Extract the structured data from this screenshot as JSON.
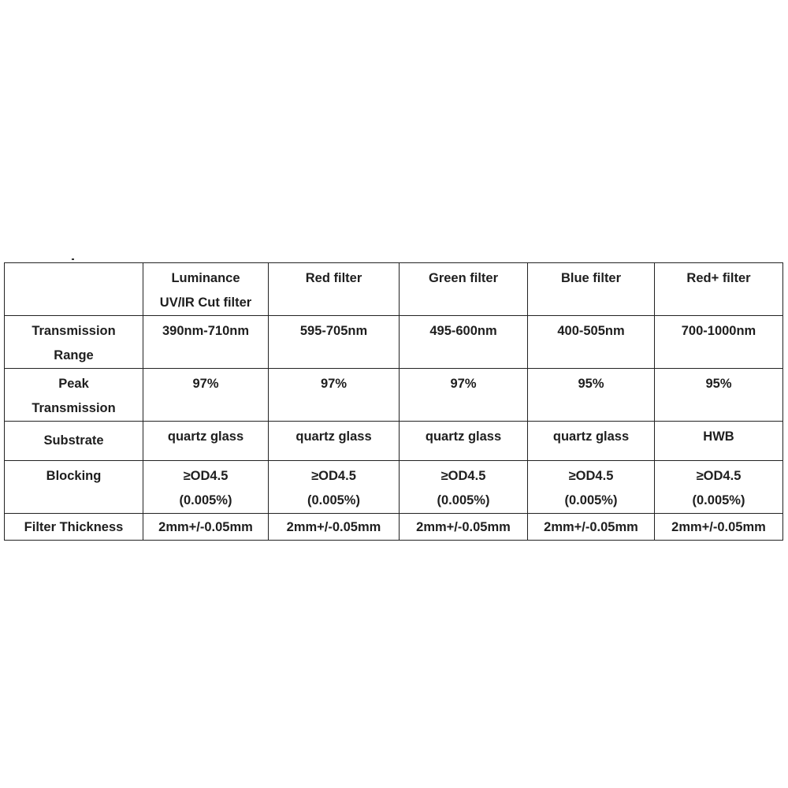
{
  "columns": [
    "",
    "Luminance UV/IR Cut filter",
    "Red filter",
    "Green filter",
    "Blue filter",
    "Red+ filter"
  ],
  "header_lines": [
    [
      ""
    ],
    [
      "Luminance",
      "UV/IR Cut filter"
    ],
    [
      "Red filter"
    ],
    [
      "Green filter"
    ],
    [
      "Blue filter"
    ],
    [
      "Red+ filter"
    ]
  ],
  "rows": [
    {
      "label_lines": [
        "Transmission",
        "Range"
      ],
      "values": [
        [
          "390nm-710nm"
        ],
        [
          "595-705nm"
        ],
        [
          "495-600nm"
        ],
        [
          "400-505nm"
        ],
        [
          "700-1000nm"
        ]
      ]
    },
    {
      "label_lines": [
        "Peak",
        "Transmission"
      ],
      "values": [
        [
          "97%"
        ],
        [
          "97%"
        ],
        [
          "97%"
        ],
        [
          "95%"
        ],
        [
          "95%"
        ]
      ]
    },
    {
      "label_lines": [
        "Substrate"
      ],
      "values": [
        [
          "quartz glass"
        ],
        [
          "quartz glass"
        ],
        [
          "quartz glass"
        ],
        [
          "quartz glass"
        ],
        [
          "HWB"
        ]
      ]
    },
    {
      "label_lines": [
        "Blocking"
      ],
      "values": [
        [
          "≥OD4.5",
          "(0.005%)"
        ],
        [
          "≥OD4.5",
          "(0.005%)"
        ],
        [
          "≥OD4.5",
          "(0.005%)"
        ],
        [
          "≥OD4.5",
          "(0.005%)"
        ],
        [
          "≥OD4.5",
          "(0.005%)"
        ]
      ]
    },
    {
      "label_lines": [
        "Filter Thickness"
      ],
      "values": [
        [
          "2mm+/-0.05mm"
        ],
        [
          "2mm+/-0.05mm"
        ],
        [
          "2mm+/-0.05mm"
        ],
        [
          "2mm+/-0.05mm"
        ],
        [
          "2mm+/-0.05mm"
        ]
      ]
    }
  ]
}
